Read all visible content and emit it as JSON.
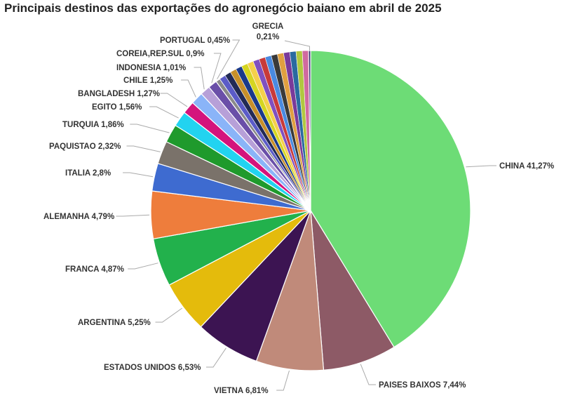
{
  "chart_data": {
    "type": "pie",
    "title": "Principais destinos das exportações do agronegócio baiano em abril de 2025",
    "slices": [
      {
        "label": "CHINA",
        "value": 41.27,
        "text": "CHINA 41,27%",
        "color": "#6ddc76"
      },
      {
        "label": "PAISES BAIXOS",
        "value": 7.44,
        "text": "PAISES BAIXOS 7,44%",
        "color": "#8d5a66"
      },
      {
        "label": "VIETNA",
        "value": 6.81,
        "text": "VIETNA 6,81%",
        "color": "#c08a7a"
      },
      {
        "label": "ESTADOS UNIDOS",
        "value": 6.53,
        "text": "ESTADOS UNIDOS 6,53%",
        "color": "#3c1452"
      },
      {
        "label": "ARGENTINA",
        "value": 5.25,
        "text": "ARGENTINA 5,25%",
        "color": "#e4bb0c"
      },
      {
        "label": "FRANCA",
        "value": 4.87,
        "text": "FRANCA 4,87%",
        "color": "#22b14c"
      },
      {
        "label": "ALEMANHA",
        "value": 4.79,
        "text": "ALEMANHA 4,79%",
        "color": "#ee7d3c"
      },
      {
        "label": "ITALIA",
        "value": 2.8,
        "text": "ITALIA 2,8%",
        "color": "#3e6bd0"
      },
      {
        "label": "PAQUISTAO",
        "value": 2.32,
        "text": "PAQUISTAO 2,32%",
        "color": "#7a726a"
      },
      {
        "label": "TURQUIA",
        "value": 1.86,
        "text": "TURQUIA 1,86%",
        "color": "#1f9a2c"
      },
      {
        "label": "EGITO",
        "value": 1.56,
        "text": "EGITO 1,56%",
        "color": "#22d3f0"
      },
      {
        "label": "BANGLADESH",
        "value": 1.27,
        "text": "BANGLADESH 1,27%",
        "color": "#d4147c"
      },
      {
        "label": "CHILE",
        "value": 1.25,
        "text": "CHILE 1,25%",
        "color": "#8ab4f8"
      },
      {
        "label": "INDONESIA",
        "value": 1.01,
        "text": "INDONESIA 1,01%",
        "color": "#b7a0d8"
      },
      {
        "label": "COREIA,REP.SUL",
        "value": 0.9,
        "text": "COREIA,REP.SUL 0,9%",
        "color": "#6a4fa8"
      },
      {
        "label": "PORTUGAL",
        "value": 0.45,
        "text": "PORTUGAL 0,45%",
        "color": "#8a8a8a"
      },
      {
        "label": "GRECIA",
        "value": 0.21,
        "text": "GRECIA 0,21%",
        "color": "#2b2b6b"
      }
    ],
    "other_slice_colors": [
      "#5b5bc8",
      "#222a55",
      "#c8902a",
      "#1a3a8a",
      "#d5d520",
      "#f5d04a",
      "#8050c0",
      "#c83a3a",
      "#4a8ae0",
      "#3a3a3a",
      "#e0a040",
      "#7a3a9a",
      "#2a6aa0",
      "#b0c840",
      "#d06aa0"
    ]
  }
}
